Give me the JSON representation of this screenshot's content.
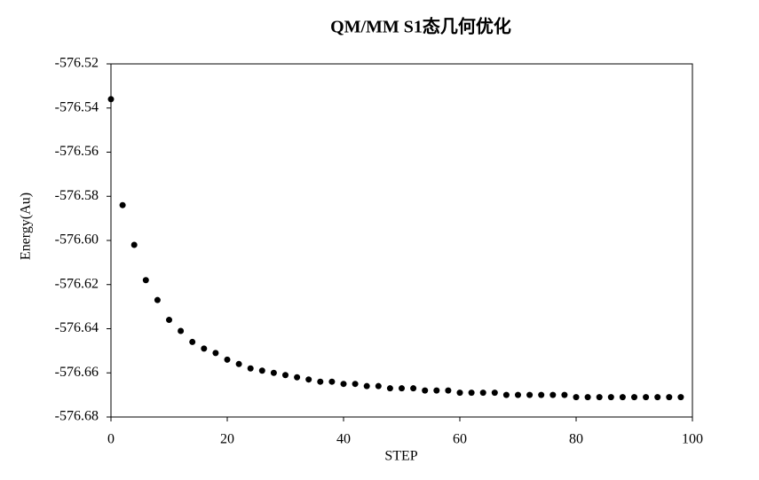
{
  "chart_data": {
    "type": "scatter",
    "title": "QM/MM S1态几何优化",
    "x_label": "STEP",
    "y_label": "Energy(Au)",
    "color": "#000000",
    "x": [
      0,
      2,
      4,
      6,
      8,
      10,
      12,
      14,
      16,
      18,
      20,
      22,
      24,
      26,
      28,
      30,
      32,
      34,
      36,
      38,
      40,
      42,
      44,
      46,
      48,
      50,
      52,
      54,
      56,
      58,
      60,
      62,
      64,
      66,
      68,
      70,
      72,
      74,
      76,
      78,
      80,
      82,
      84,
      86,
      88,
      90,
      92,
      94,
      96,
      98
    ],
    "values": [
      -576.536,
      -576.584,
      -576.602,
      -576.618,
      -576.627,
      -576.636,
      -576.641,
      -576.646,
      -576.649,
      -576.651,
      -576.654,
      -576.656,
      -576.658,
      -576.659,
      -576.66,
      -576.661,
      -576.662,
      -576.663,
      -576.664,
      -576.664,
      -576.665,
      -576.665,
      -576.666,
      -576.666,
      -576.667,
      -576.667,
      -576.667,
      -576.668,
      -576.668,
      -576.668,
      -576.669,
      -576.669,
      -576.669,
      -576.669,
      -576.67,
      -576.67,
      -576.67,
      -576.67,
      -576.67,
      -576.67,
      -576.671,
      -576.671,
      -576.671,
      -576.671,
      -576.671,
      -576.671,
      -576.671,
      -576.671,
      -576.671,
      -576.671
    ],
    "xlim": [
      0,
      100
    ],
    "xticks": [
      0,
      20,
      40,
      60,
      80,
      100
    ],
    "ylim": [
      -576.68,
      -576.52
    ],
    "yticks": [
      -576.52,
      -576.54,
      -576.56,
      -576.58,
      {
        "value": -576.6,
        "label": "-576.60"
      },
      -576.62,
      -576.64,
      -576.66,
      -576.68
    ]
  }
}
